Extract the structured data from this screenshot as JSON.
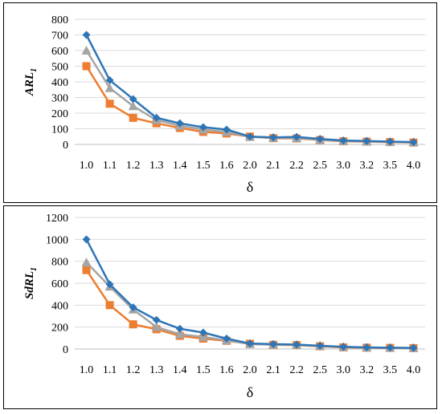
{
  "chart_data": [
    {
      "type": "line",
      "ylabel_main": "ARL",
      "ylabel_sub": "1",
      "xlabel": "δ",
      "categories": [
        "1.0",
        "1.1",
        "1.2",
        "1.3",
        "1.4",
        "1.5",
        "1.6",
        "2.0",
        "2.1",
        "2.2",
        "2.5",
        "3.0",
        "3.2",
        "3.5",
        "4.0"
      ],
      "ylim": [
        0,
        800
      ],
      "yticks": [
        0,
        100,
        200,
        300,
        400,
        500,
        600,
        700,
        800
      ],
      "grid": true,
      "series": [
        {
          "marker": "diamond",
          "color": "#2e75b6",
          "values": [
            700,
            410,
            290,
            170,
            135,
            110,
            95,
            50,
            45,
            48,
            35,
            25,
            22,
            18,
            15
          ]
        },
        {
          "marker": "triangle",
          "color": "#a5a5a5",
          "values": [
            600,
            360,
            245,
            155,
            120,
            95,
            80,
            48,
            42,
            40,
            30,
            22,
            20,
            16,
            14
          ]
        },
        {
          "marker": "square",
          "color": "#ed7d31",
          "values": [
            500,
            260,
            170,
            135,
            105,
            80,
            70,
            50,
            40,
            38,
            28,
            20,
            18,
            15,
            12
          ]
        }
      ]
    },
    {
      "type": "line",
      "ylabel_main": "SdRL",
      "ylabel_sub": "1",
      "xlabel": "δ",
      "categories": [
        "1.0",
        "1.1",
        "1.2",
        "1.3",
        "1.4",
        "1.5",
        "1.6",
        "2.0",
        "2.1",
        "2.2",
        "2.5",
        "3.0",
        "3.2",
        "3.5",
        "4.0"
      ],
      "ylim": [
        0,
        1200
      ],
      "yticks": [
        0,
        200,
        400,
        600,
        800,
        1000,
        1200
      ],
      "grid": true,
      "series": [
        {
          "marker": "diamond",
          "color": "#2e75b6",
          "values": [
            1000,
            590,
            380,
            265,
            185,
            150,
            95,
            50,
            45,
            40,
            30,
            20,
            15,
            12,
            10
          ]
        },
        {
          "marker": "triangle",
          "color": "#a5a5a5",
          "values": [
            790,
            570,
            360,
            200,
            135,
            110,
            80,
            45,
            40,
            38,
            28,
            18,
            14,
            12,
            10
          ]
        },
        {
          "marker": "square",
          "color": "#ed7d31",
          "values": [
            720,
            400,
            225,
            180,
            120,
            95,
            75,
            48,
            38,
            36,
            25,
            15,
            12,
            10,
            8
          ]
        }
      ]
    }
  ]
}
